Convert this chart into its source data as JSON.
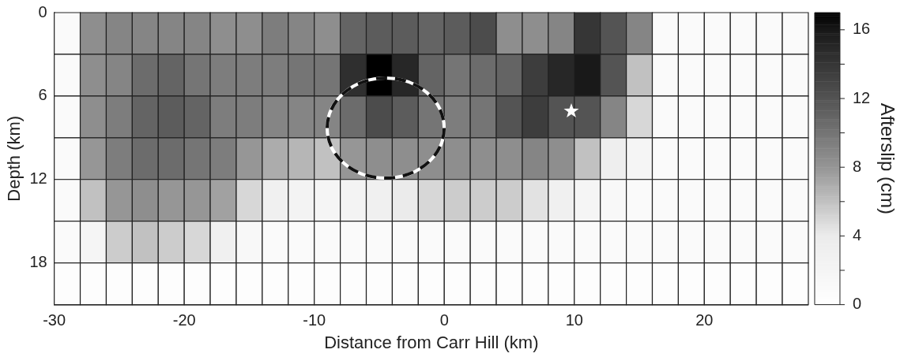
{
  "chart_data": {
    "type": "heatmap",
    "xlabel": "Distance from Carr Hill (km)",
    "ylabel": "Depth (km)",
    "clabel": "Afterslip (cm)",
    "xlim": [
      -30,
      28
    ],
    "xticks": [
      -30,
      -20,
      -10,
      0,
      10,
      20
    ],
    "ylim": [
      21,
      0
    ],
    "yticks": [
      0,
      6,
      12,
      18
    ],
    "clim": [
      0,
      17
    ],
    "cticks": [
      0,
      {
        "value": 2,
        "label": null
      },
      4,
      {
        "value": 6,
        "label": null
      },
      8,
      {
        "value": 10,
        "label": null
      },
      12,
      {
        "value": 14,
        "label": null
      },
      16
    ],
    "cells": [
      [
        1,
        8.5,
        9,
        9,
        9,
        9,
        8.5,
        8.5,
        9.5,
        9,
        8.5,
        11,
        11.5,
        11.5,
        11,
        11.5,
        12.5,
        8.5,
        8.5,
        9,
        14,
        12,
        9,
        1,
        1,
        1,
        1,
        1,
        1
      ],
      [
        1,
        8.5,
        9,
        10.5,
        11,
        10,
        9.5,
        9.5,
        9.5,
        10,
        10,
        14.5,
        17,
        15,
        11,
        10,
        10.5,
        11,
        13.5,
        15,
        16,
        12,
        6,
        1,
        1,
        1,
        1,
        1,
        1
      ],
      [
        1,
        8.5,
        9.5,
        11,
        11.5,
        11,
        9.5,
        9.5,
        9,
        9,
        9,
        10.5,
        12.5,
        11.5,
        10,
        9.5,
        10,
        12,
        13.5,
        12,
        12,
        9,
        5,
        1,
        1,
        1,
        1,
        1,
        1
      ],
      [
        1,
        8,
        9.5,
        10.5,
        10.5,
        10,
        9.5,
        8,
        7,
        6.5,
        6,
        8,
        8.5,
        8.5,
        8.5,
        8.5,
        8.5,
        8.5,
        9,
        8.5,
        6,
        3.5,
        2,
        1,
        1,
        1,
        1,
        1,
        1
      ],
      [
        1,
        6,
        8,
        8.5,
        8,
        8,
        7.5,
        5,
        3,
        2.5,
        2,
        2.5,
        3,
        4,
        5,
        5.5,
        5.5,
        5.5,
        4.5,
        3,
        2,
        1.5,
        1,
        1,
        1,
        1,
        1,
        1,
        1
      ],
      [
        1,
        2,
        5.5,
        6,
        5.5,
        5,
        3,
        1.5,
        1,
        1,
        1,
        1,
        1,
        1,
        1,
        1,
        1,
        1,
        1,
        1,
        1,
        1,
        1,
        1,
        1,
        1,
        1,
        1,
        1
      ],
      [
        0.5,
        0.5,
        0.5,
        0.5,
        0.5,
        0.5,
        0.5,
        0.5,
        0.5,
        0.5,
        0.5,
        0.5,
        0.5,
        0.5,
        0.5,
        0.5,
        0.5,
        0.5,
        0.5,
        0.5,
        0.5,
        0.5,
        0.5,
        0.5,
        0.5,
        0.5,
        0.5,
        0.5,
        0.5
      ]
    ]
  }
}
